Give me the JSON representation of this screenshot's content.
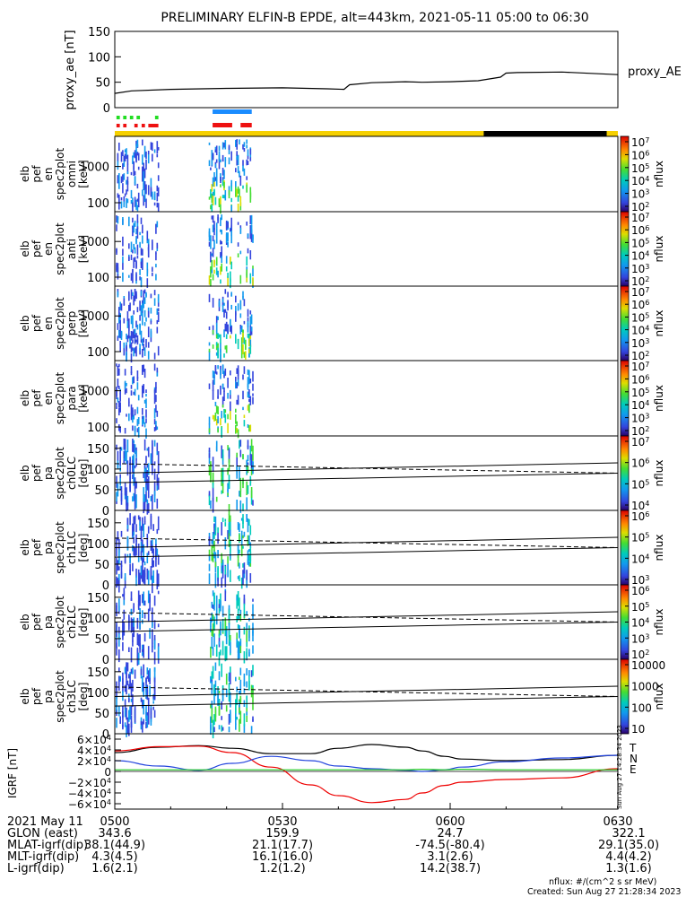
{
  "chart_data": {
    "type": "multi-panel time series / spectrogram",
    "title": "PRELIMINARY ELFIN-B EPDE, alt=443km, 2021-05-11 05:00 to 06:30",
    "time_range": [
      "05:00",
      "06:30"
    ],
    "proxy_ae": {
      "ylabel": "proxy_ae [nT]",
      "legend": "proxy_AE",
      "ylim": [
        0,
        150
      ],
      "yticks": [
        "150",
        "100",
        "50",
        "0"
      ],
      "t_min": [
        0,
        3,
        10,
        20,
        30,
        38,
        41,
        42,
        46,
        52,
        55,
        60,
        65,
        69,
        70,
        72,
        80,
        90
      ],
      "values": [
        28,
        33,
        36,
        38,
        39,
        37,
        36,
        45,
        49,
        51,
        50,
        51,
        53,
        60,
        68,
        69,
        70,
        65
      ],
      "color": "#000000"
    },
    "flags": {
      "green_segments_min": [
        [
          0.3,
          0.9
        ],
        [
          1.5,
          2.1
        ],
        [
          2.7,
          3.3
        ],
        [
          3.9,
          4.5
        ],
        [
          7.2,
          7.8
        ]
      ],
      "red_segments_min": [
        [
          0.3,
          0.9
        ],
        [
          1.5,
          2.1
        ],
        [
          3.5,
          4.1
        ],
        [
          4.8,
          5.4
        ],
        [
          6.0,
          7.8
        ]
      ],
      "blue_segments_min": [
        [
          17.5,
          24.5
        ]
      ],
      "red2_segments_min": [
        [
          17.5,
          21.0
        ],
        [
          22.5,
          24.5
        ]
      ],
      "orbit_bar_yellow_min": [
        [
          0,
          66
        ],
        [
          88,
          90
        ]
      ],
      "orbit_bar_black_min": [
        [
          66,
          88
        ]
      ]
    },
    "spectrograms": [
      {
        "ylabel": [
          "elb",
          "pef",
          "en",
          "spec2plot",
          "omni",
          "[keV]"
        ],
        "ylog": true,
        "yticks": [
          "1000",
          "100"
        ],
        "zticks": [
          "10^7",
          "10^6",
          "10^5",
          "10^4",
          "10^3",
          "10^2"
        ],
        "zlabel": "nflux"
      },
      {
        "ylabel": [
          "elb",
          "pef",
          "en",
          "spec2plot",
          "anti",
          "[keV]"
        ],
        "ylog": true,
        "yticks": [
          "1000",
          "100"
        ],
        "zticks": [
          "10^7",
          "10^6",
          "10^5",
          "10^4",
          "10^3",
          "10^2"
        ],
        "zlabel": "nflux"
      },
      {
        "ylabel": [
          "elb",
          "pef",
          "en",
          "spec2plot",
          "perp",
          "[keV]"
        ],
        "ylog": true,
        "yticks": [
          "1000",
          "100"
        ],
        "zticks": [
          "10^7",
          "10^6",
          "10^5",
          "10^4",
          "10^3",
          "10^2"
        ],
        "zlabel": "nflux"
      },
      {
        "ylabel": [
          "elb",
          "pef",
          "en",
          "spec2plot",
          "para",
          "[keV]"
        ],
        "ylog": true,
        "yticks": [
          "1000",
          "100"
        ],
        "zticks": [
          "10^7",
          "10^6",
          "10^5",
          "10^4",
          "10^3",
          "10^2"
        ],
        "zlabel": "nflux"
      },
      {
        "ylabel": [
          "elb",
          "pef",
          "pa",
          "spec2plot",
          "ch0LC",
          "[deg]"
        ],
        "ylim": [
          0,
          180
        ],
        "yticks": [
          "150",
          "100",
          "50",
          "0"
        ],
        "zticks": [
          "10^7",
          "10^6",
          "10^5",
          "10^4"
        ],
        "zlabel": "nflux"
      },
      {
        "ylabel": [
          "elb",
          "pef",
          "pa",
          "spec2plot",
          "ch1LC",
          "[deg]"
        ],
        "ylim": [
          0,
          180
        ],
        "yticks": [
          "150",
          "100",
          "50",
          "0"
        ],
        "zticks": [
          "10^6",
          "10^5",
          "10^4",
          "10^3"
        ],
        "zlabel": "nflux"
      },
      {
        "ylabel": [
          "elb",
          "pef",
          "pa",
          "spec2plot",
          "ch2LC",
          "[deg]"
        ],
        "ylim": [
          0,
          180
        ],
        "yticks": [
          "150",
          "100",
          "50",
          "0"
        ],
        "zticks": [
          "10^6",
          "10^5",
          "10^4",
          "10^3",
          "10^2"
        ],
        "zlabel": "nflux"
      },
      {
        "ylabel": [
          "elb",
          "pef",
          "pa",
          "spec2plot",
          "ch3LC",
          "[deg]"
        ],
        "ylim": [
          0,
          180
        ],
        "yticks": [
          "150",
          "100",
          "50",
          "0"
        ],
        "zticks": [
          "10000",
          "1000",
          "100",
          "10"
        ],
        "zlabel": "nflux"
      }
    ],
    "loss_cone_lines": {
      "solid_deg": [
        [
          0,
          67
        ],
        [
          90,
          90
        ]
      ],
      "solid_upper_deg": [
        [
          0,
          90
        ],
        [
          90,
          115
        ]
      ],
      "dashed_deg": [
        [
          0,
          113
        ],
        [
          90,
          90
        ]
      ]
    },
    "igrf": {
      "ylabel": "IGRF [nT]",
      "ylim": [
        -70000,
        70000
      ],
      "yticks": [
        "6×10^4",
        "4×10^4",
        "2×10^4",
        "0",
        "−2×10^4",
        "−4×10^4",
        "−6×10^4"
      ],
      "legend": [
        "T",
        "N",
        "E"
      ],
      "legend_colors": [
        "#000000",
        "#ff0000",
        "#00cc00"
      ],
      "t_min": [
        0,
        8,
        15,
        21,
        28,
        35,
        40,
        46,
        52,
        55,
        59,
        62,
        70,
        80,
        90
      ],
      "total": [
        35000,
        45000,
        48000,
        43000,
        33000,
        33000,
        43000,
        50000,
        45000,
        38000,
        28000,
        23000,
        20000,
        22000,
        30000
      ],
      "north": [
        38000,
        46000,
        47000,
        35000,
        8000,
        -25000,
        -45000,
        -58000,
        -52000,
        -40000,
        -26000,
        -20000,
        -15000,
        -12000,
        5000
      ],
      "blue": [
        20000,
        10000,
        2000,
        15000,
        28000,
        20000,
        10000,
        5000,
        2000,
        0,
        3000,
        8000,
        18000,
        25000,
        30000
      ],
      "east": [
        3000,
        3000,
        3000,
        3000,
        3000,
        3000,
        3000,
        3000,
        3000,
        4000,
        3000,
        4000,
        3000,
        3000,
        3000
      ],
      "created_stamp": "Sun Aug 27 14:28:34 2023"
    },
    "xaxis": {
      "date_label": "2021 May 11",
      "ticks": [
        "0500",
        "0530",
        "0600",
        "0630"
      ],
      "rows": [
        {
          "label": "GLON (east)",
          "values": [
            "343.6",
            "159.9",
            "24.7",
            "322.1"
          ]
        },
        {
          "label": "MLAT-igrf(dip)",
          "values": [
            "38.1(44.9)",
            "21.1(17.7)",
            "-74.5(-80.4)",
            "29.1(35.0)"
          ]
        },
        {
          "label": "MLT-igrf(dip)",
          "values": [
            "4.3(4.5)",
            "16.1(16.0)",
            "3.1(2.6)",
            "4.4(4.2)"
          ]
        },
        {
          "label": "L-igrf(dip)",
          "values": [
            "1.6(2.1)",
            "1.2(1.2)",
            "14.2(38.7)",
            "1.3(1.6)"
          ]
        }
      ]
    },
    "units_note": "nflux: #/(cm^2 s sr MeV)",
    "created": "Created: Sun Aug 27 21:28:34 2023"
  }
}
